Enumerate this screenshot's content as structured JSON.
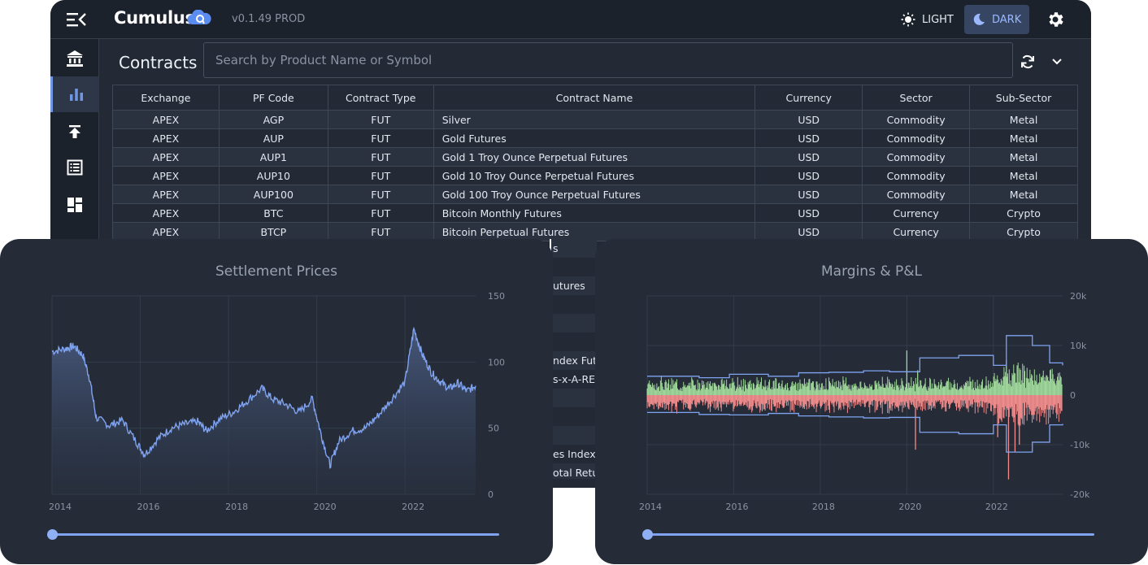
{
  "header": {
    "logo": "Cumulus",
    "version": "v0.1.49 PROD",
    "light_label": "LIGHT",
    "dark_label": "DARK"
  },
  "sidebar": {
    "items": [
      {
        "icon": "bank-icon"
      },
      {
        "icon": "bar-chart-icon",
        "active": true
      },
      {
        "icon": "upload-icon"
      },
      {
        "icon": "list-icon"
      },
      {
        "icon": "dashboard-icon"
      }
    ]
  },
  "contracts": {
    "title": "Contracts",
    "search_placeholder": "Search by Product Name or Symbol",
    "columns": [
      "Exchange",
      "PF Code",
      "Contract Type",
      "Contract Name",
      "Currency",
      "Sector",
      "Sub-Sector"
    ],
    "rows": [
      [
        "APEX",
        "AGP",
        "FUT",
        "Silver",
        "USD",
        "Commodity",
        "Metal"
      ],
      [
        "APEX",
        "AUP",
        "FUT",
        "Gold Futures",
        "USD",
        "Commodity",
        "Metal"
      ],
      [
        "APEX",
        "AUP1",
        "FUT",
        "Gold 1 Troy Ounce Perpetual Futures",
        "USD",
        "Commodity",
        "Metal"
      ],
      [
        "APEX",
        "AUP10",
        "FUT",
        "Gold 10 Troy Ounce Perpetual Futures",
        "USD",
        "Commodity",
        "Metal"
      ],
      [
        "APEX",
        "AUP100",
        "FUT",
        "Gold 100 Troy Ounce Perpetual Futures",
        "USD",
        "Commodity",
        "Metal"
      ],
      [
        "APEX",
        "BTC",
        "FUT",
        "Bitcoin Monthly Futures",
        "USD",
        "Currency",
        "Crypto"
      ],
      [
        "APEX",
        "BTCP",
        "FUT",
        "Bitcoin Perpetual Futures",
        "USD",
        "Currency",
        "Crypto"
      ]
    ],
    "hidden_fragments": [
      "s",
      "",
      "utures",
      "",
      "",
      "",
      "ndex Futu",
      "s-x-A-RE",
      "",
      "",
      "",
      "es Index F",
      "otal Retur"
    ]
  },
  "settlement_chart": {
    "title": "Settlement Prices",
    "chart_data": {
      "type": "area",
      "title": "Settlement Prices",
      "x_ticks": [
        "2014",
        "2016",
        "2018",
        "2020",
        "2022"
      ],
      "y_ticks": [
        "0",
        "50",
        "100",
        "150"
      ],
      "ylim": [
        0,
        150
      ],
      "xlim": [
        2014.0,
        2023.6
      ],
      "x": [
        2014.0,
        2014.3,
        2014.5,
        2014.7,
        2014.85,
        2015.0,
        2015.3,
        2015.6,
        2015.9,
        2016.1,
        2016.4,
        2016.7,
        2017.0,
        2017.3,
        2017.5,
        2017.8,
        2018.1,
        2018.4,
        2018.75,
        2019.0,
        2019.3,
        2019.6,
        2019.9,
        2020.1,
        2020.3,
        2020.5,
        2020.8,
        2021.1,
        2021.4,
        2021.7,
        2022.0,
        2022.2,
        2022.4,
        2022.6,
        2022.8,
        2023.0,
        2023.2,
        2023.4,
        2023.6
      ],
      "values": [
        108,
        110,
        112,
        105,
        88,
        58,
        52,
        56,
        40,
        30,
        42,
        50,
        53,
        55,
        48,
        57,
        62,
        70,
        80,
        72,
        68,
        62,
        72,
        45,
        22,
        40,
        48,
        50,
        60,
        72,
        85,
        125,
        105,
        92,
        85,
        80,
        84,
        78,
        82
      ],
      "color": "#7fa3f0"
    }
  },
  "margins_chart": {
    "title": "Margins & P&L",
    "chart_data": {
      "type": "line",
      "title": "Margins & P&L",
      "x_ticks": [
        "2014",
        "2016",
        "2018",
        "2020",
        "2022"
      ],
      "y_ticks": [
        "20k",
        "10k",
        "0",
        "-10k",
        "-20k"
      ],
      "ylim": [
        -20000,
        20000
      ],
      "xlim": [
        2014.0,
        2023.6
      ],
      "series": [
        {
          "x": [
            2014.0,
            2014.6,
            2015.2,
            2015.9,
            2016.8,
            2017.5,
            2018.2,
            2019.0,
            2019.6,
            2020.3,
            2021.2,
            2022.0,
            2022.3,
            2022.9,
            2023.3,
            2023.6
          ],
          "values": [
            3800,
            3800,
            3500,
            4200,
            3800,
            4500,
            4600,
            4900,
            4700,
            7500,
            8000,
            6000,
            12000,
            10000,
            6500,
            6000
          ],
          "color": "#7fa3f0"
        },
        {
          "x": [
            2014.0,
            2014.6,
            2015.2,
            2015.9,
            2016.8,
            2017.5,
            2018.2,
            2019.0,
            2019.6,
            2020.3,
            2021.2,
            2022.0,
            2022.3,
            2022.9,
            2023.3,
            2023.6
          ],
          "values": [
            -3500,
            -3500,
            -3900,
            -4000,
            -3700,
            -4200,
            -4400,
            -4600,
            -4500,
            -7500,
            -7800,
            -6000,
            -11500,
            -9500,
            -6000,
            -5800
          ],
          "color": "#7fa3f0"
        }
      ],
      "pnl": {
        "positive_color": "#9fd79a",
        "negative_color": "#f08c8c",
        "spikes": [
          {
            "x": 2020.0,
            "v": 9000
          },
          {
            "x": 2020.2,
            "v": -11000
          },
          {
            "x": 2020.25,
            "v": 5000
          },
          {
            "x": 2022.1,
            "v": -8500
          },
          {
            "x": 2022.3,
            "v": 7000
          },
          {
            "x": 2022.35,
            "v": -17000
          },
          {
            "x": 2022.5,
            "v": -11500
          },
          {
            "x": 2022.55,
            "v": 6000
          },
          {
            "x": 2022.6,
            "v": -10000
          }
        ]
      }
    }
  }
}
